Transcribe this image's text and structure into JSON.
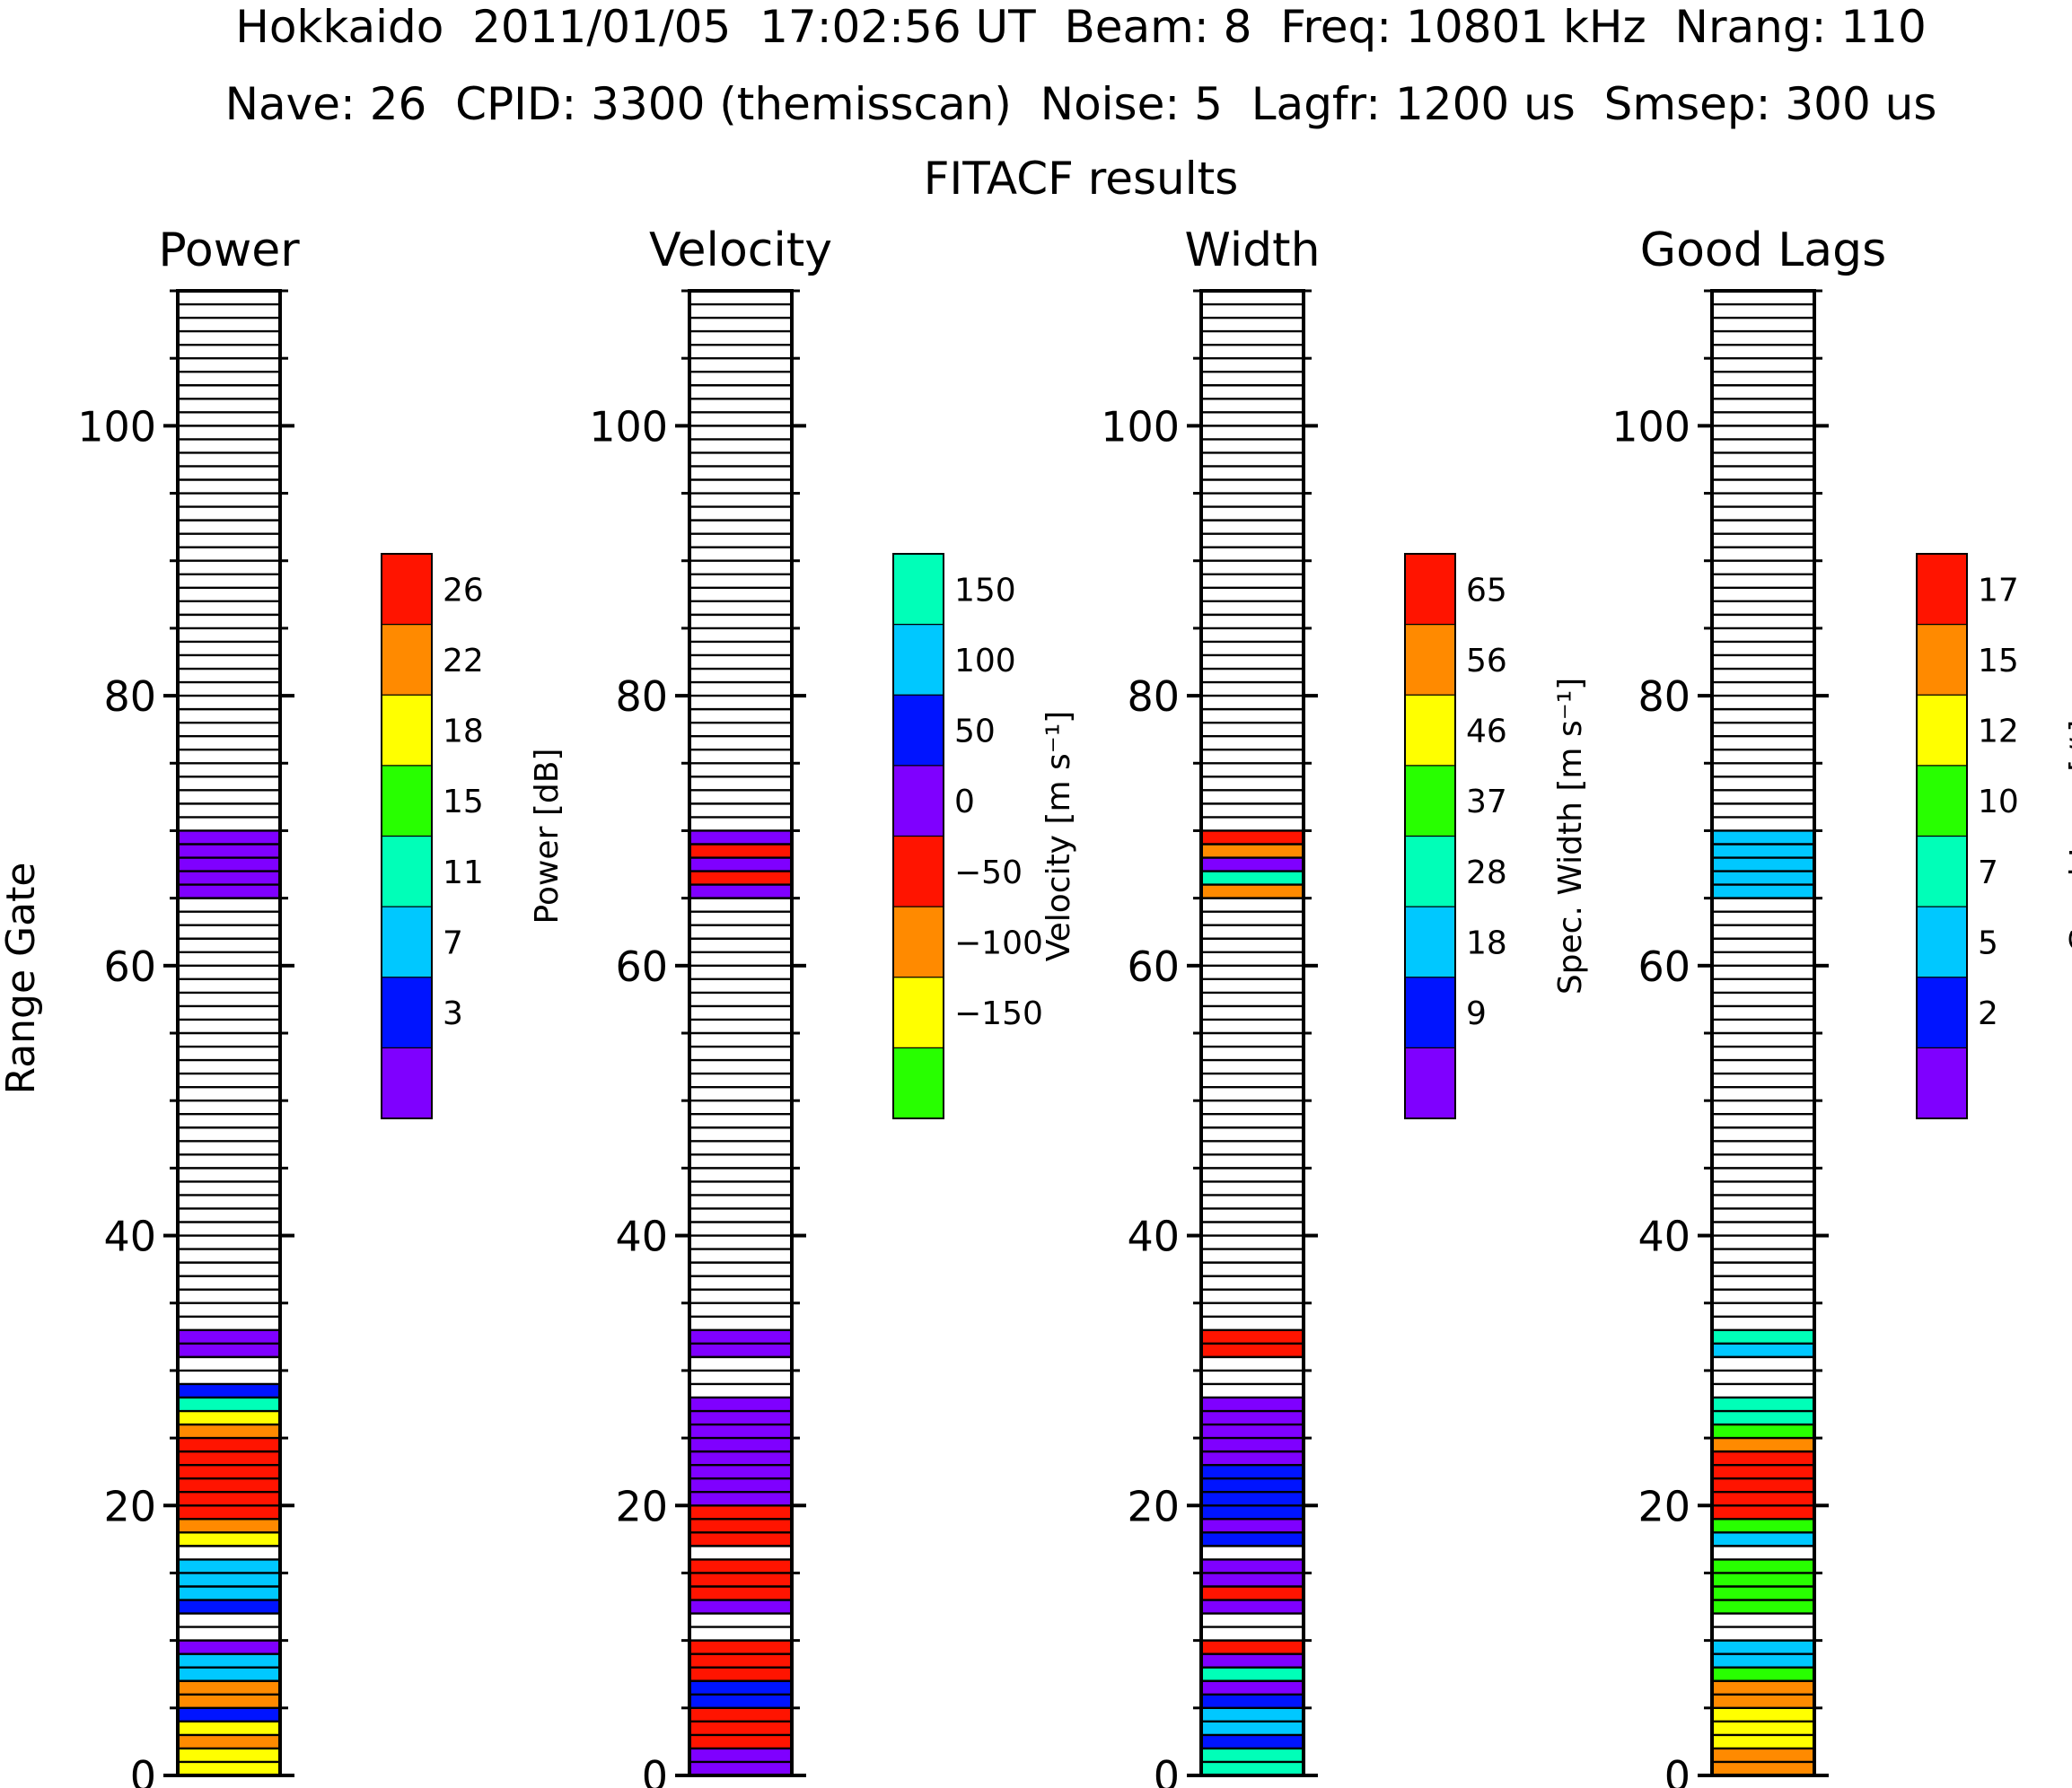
{
  "header": {
    "line1": "Hokkaido  2011/01/05  17:02:56 UT  Beam: 8  Freq: 10801 kHz  Nrang: 110",
    "line2": "Nave: 26  CPID: 3300 (themisscan)  Noise: 5  Lagfr: 1200 us  Smsep: 300 us",
    "line3": "FITACF results"
  },
  "colors": {
    "purple": "#7f00ff",
    "blue": "#0014ff",
    "lightblue": "#00c8ff",
    "teal": "#00ffb8",
    "green": "#28ff00",
    "yellow": "#ffff00",
    "orange": "#ff8a00",
    "red": "#ff1400"
  },
  "chart_data": {
    "type": "heatmap",
    "ylabel": "Range Gate",
    "ylim": [
      0,
      110
    ],
    "yticks": [
      "0",
      "20",
      "40",
      "60",
      "80",
      "100"
    ],
    "panels": [
      {
        "title": "Power",
        "colorbar_label": "Power [dB]",
        "colorbar_colors": [
          "purple",
          "blue",
          "lightblue",
          "teal",
          "green",
          "yellow",
          "orange",
          "red"
        ],
        "colorbar_ticks": [
          "3",
          "7",
          "11",
          "15",
          "18",
          "22",
          "26"
        ],
        "gates": {
          "0": "yellow",
          "1": "yellow",
          "2": "orange",
          "3": "yellow",
          "4": "blue",
          "5": "orange",
          "6": "orange",
          "7": "lightblue",
          "8": "lightblue",
          "9": "purple",
          "12": "blue",
          "13": "lightblue",
          "14": "lightblue",
          "15": "lightblue",
          "17": "yellow",
          "18": "orange",
          "19": "red",
          "20": "red",
          "21": "red",
          "22": "red",
          "23": "red",
          "24": "red",
          "25": "orange",
          "26": "yellow",
          "27": "teal",
          "28": "blue",
          "31": "purple",
          "32": "purple",
          "65": "purple",
          "66": "purple",
          "67": "purple",
          "68": "purple",
          "69": "purple"
        }
      },
      {
        "title": "Velocity",
        "colorbar_label": "Velocity [m s⁻¹]",
        "colorbar_colors": [
          "green",
          "yellow",
          "orange",
          "red",
          "purple",
          "blue",
          "lightblue",
          "teal"
        ],
        "colorbar_ticks": [
          "−150",
          "−100",
          "−50",
          "0",
          "50",
          "100",
          "150"
        ],
        "gates": {
          "0": "purple",
          "1": "purple",
          "2": "red",
          "3": "red",
          "4": "red",
          "5": "blue",
          "6": "blue",
          "7": "red",
          "8": "red",
          "9": "red",
          "12": "purple",
          "13": "red",
          "14": "red",
          "15": "red",
          "17": "red",
          "18": "red",
          "19": "red",
          "20": "purple",
          "21": "purple",
          "22": "purple",
          "23": "purple",
          "24": "purple",
          "25": "purple",
          "26": "purple",
          "27": "purple",
          "31": "purple",
          "32": "purple",
          "65": "purple",
          "66": "red",
          "67": "purple",
          "68": "red",
          "69": "purple"
        }
      },
      {
        "title": "Width",
        "colorbar_label": "Spec. Width [m s⁻¹]",
        "colorbar_colors": [
          "purple",
          "blue",
          "lightblue",
          "teal",
          "green",
          "yellow",
          "orange",
          "red"
        ],
        "colorbar_ticks": [
          "9",
          "18",
          "28",
          "37",
          "46",
          "56",
          "65"
        ],
        "gates": {
          "0": "teal",
          "1": "teal",
          "2": "blue",
          "3": "lightblue",
          "4": "lightblue",
          "5": "blue",
          "6": "purple",
          "7": "teal",
          "8": "purple",
          "9": "red",
          "12": "purple",
          "13": "red",
          "14": "purple",
          "15": "purple",
          "17": "blue",
          "18": "purple",
          "19": "blue",
          "20": "blue",
          "21": "blue",
          "22": "blue",
          "23": "purple",
          "24": "purple",
          "25": "purple",
          "26": "purple",
          "27": "purple",
          "31": "red",
          "32": "red",
          "65": "orange",
          "66": "teal",
          "67": "purple",
          "68": "orange",
          "69": "red"
        }
      },
      {
        "title": "Good Lags",
        "colorbar_label": "Good Lags [#]",
        "colorbar_colors": [
          "purple",
          "blue",
          "lightblue",
          "teal",
          "green",
          "yellow",
          "orange",
          "red"
        ],
        "colorbar_ticks": [
          "2",
          "5",
          "7",
          "10",
          "12",
          "15",
          "17"
        ],
        "gates": {
          "0": "orange",
          "1": "orange",
          "2": "yellow",
          "3": "yellow",
          "4": "yellow",
          "5": "orange",
          "6": "orange",
          "7": "green",
          "8": "lightblue",
          "9": "lightblue",
          "12": "green",
          "13": "green",
          "14": "green",
          "15": "green",
          "17": "lightblue",
          "18": "green",
          "19": "red",
          "20": "red",
          "21": "red",
          "22": "red",
          "23": "red",
          "24": "orange",
          "25": "green",
          "26": "teal",
          "27": "teal",
          "31": "lightblue",
          "32": "teal",
          "65": "lightblue",
          "66": "lightblue",
          "67": "lightblue",
          "68": "lightblue",
          "69": "lightblue"
        }
      }
    ]
  }
}
